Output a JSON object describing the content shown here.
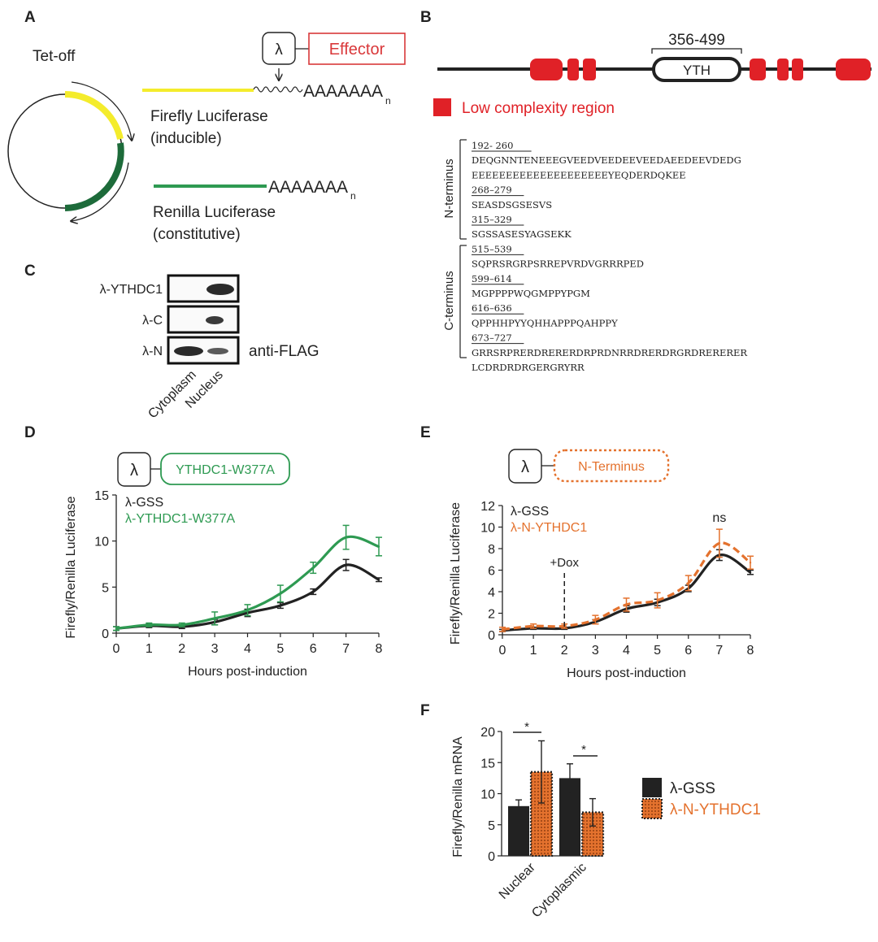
{
  "colors": {
    "black": "#222222",
    "green": "#2e9a52",
    "dark_green": "#1d6b3a",
    "yellow": "#f4ec2c",
    "orange": "#e4722e",
    "red": "#e02127",
    "effector_red": "#d9383a"
  },
  "panelA": {
    "letter": "A",
    "tet_off": "Tet-off",
    "lambda": "λ",
    "effector": "Effector",
    "polyA": "AAAAAAA",
    "polyA_sub": "n",
    "firefly_line1": "Firefly Luciferase",
    "firefly_line2": "(inducible)",
    "renilla_line1": "Renilla Luciferase",
    "renilla_line2": "(constitutive)"
  },
  "panelB": {
    "letter": "B",
    "range": "356-499",
    "domain": "YTH",
    "legend": "Low complexity region",
    "n_label": "N-terminus",
    "c_label": "C-terminus",
    "n_blocks": [
      {
        "range": "192- 260",
        "lines": [
          "DEQGNNTENEEEGVEEDVEEDEEVEEDAEEDEEVDEDG",
          "EEEEEEEEEEEEEEEEEEEEYEQDERDQKEE"
        ]
      },
      {
        "range": "268–279",
        "lines": [
          "SEASDSGSESVS"
        ]
      },
      {
        "range": "315–329",
        "lines": [
          "SGSSASESYAGSEKK"
        ]
      }
    ],
    "c_blocks": [
      {
        "range": "515–539",
        "lines": [
          "SQPRSRGRPSRREPVRDVGRRRPED"
        ]
      },
      {
        "range": "599–614",
        "lines": [
          "MGPPPPWQGMPPYPGM"
        ]
      },
      {
        "range": "616–636",
        "lines": [
          "QPPHHPYYQHHAPPPQAHPPY"
        ]
      },
      {
        "range": "673–727",
        "lines": [
          "GRRSRPRERDRERERDRPRDNRRDRERDRGRDRERERER",
          "LCDRDRDRGERGRYRR"
        ]
      }
    ]
  },
  "panelC": {
    "letter": "C",
    "rows": [
      "λ-YTHDC1",
      "λ-C",
      "λ-N"
    ],
    "antibody": "anti-FLAG",
    "fractions": [
      "Cytoplasm",
      "Nucleus"
    ]
  },
  "panelD": {
    "letter": "D",
    "lambda": "λ",
    "construct": "YTHDC1-W377A"
  },
  "panelE": {
    "letter": "E",
    "lambda": "λ",
    "construct": "N-Terminus",
    "dox": "+Dox",
    "ns": "ns"
  },
  "panelF": {
    "letter": "F",
    "star1": "*",
    "star2": "*"
  },
  "chart_data": [
    {
      "id": "D",
      "type": "line",
      "ylabel": "Firefly/Renilla Luciferase",
      "xlabel": "Hours post-induction",
      "x": [
        0,
        1,
        2,
        3,
        4,
        5,
        6,
        7,
        8
      ],
      "xlim": [
        0,
        8
      ],
      "ylim": [
        0,
        15
      ],
      "yticks": [
        0,
        5,
        10,
        15
      ],
      "series": [
        {
          "name": "λ-GSS",
          "color": "#222222",
          "values": [
            0.5,
            0.8,
            0.7,
            1.2,
            2.2,
            3.0,
            4.5,
            7.4,
            5.8
          ],
          "err": [
            0.2,
            0.2,
            0.2,
            0.3,
            0.4,
            0.3,
            0.3,
            0.6,
            0.2
          ]
        },
        {
          "name": "λ-YTHDC1-W377A",
          "color": "#2e9a52",
          "values": [
            0.5,
            0.9,
            0.9,
            1.6,
            2.5,
            4.3,
            7.1,
            10.4,
            9.4
          ],
          "err": [
            0.2,
            0.2,
            0.2,
            0.7,
            0.6,
            0.9,
            0.6,
            1.3,
            1.0
          ]
        }
      ]
    },
    {
      "id": "E",
      "type": "line",
      "ylabel": "Firefly/Renilla Luciferase",
      "xlabel": "Hours post-induction",
      "x": [
        0,
        1,
        2,
        3,
        4,
        5,
        6,
        7,
        8
      ],
      "xlim": [
        0,
        8
      ],
      "ylim": [
        0,
        12
      ],
      "yticks": [
        0,
        2,
        4,
        6,
        8,
        10,
        12
      ],
      "series": [
        {
          "name": "λ-GSS",
          "color": "#222222",
          "values": [
            0.4,
            0.6,
            0.6,
            1.2,
            2.4,
            3.0,
            4.3,
            7.4,
            5.8
          ],
          "err": [
            0.1,
            0.1,
            0.1,
            0.2,
            0.3,
            0.3,
            0.3,
            0.5,
            0.2
          ]
        },
        {
          "name": "λ-N-YTHDC1",
          "color": "#e4722e",
          "values": [
            0.5,
            0.8,
            0.8,
            1.4,
            2.8,
            3.2,
            4.8,
            8.5,
            6.7
          ],
          "err": [
            0.2,
            0.2,
            0.2,
            0.4,
            0.6,
            0.7,
            0.7,
            1.3,
            0.6
          ]
        }
      ]
    },
    {
      "id": "F",
      "type": "bar",
      "ylabel": "Firefly/Renilla mRNA",
      "categories": [
        "Nuclear",
        "Cytoplasmic"
      ],
      "ylim": [
        0,
        20
      ],
      "yticks": [
        0,
        5,
        10,
        15,
        20
      ],
      "series": [
        {
          "name": "λ-GSS",
          "color": "#222222",
          "values": [
            8.0,
            12.5
          ],
          "err": [
            1.0,
            2.3
          ]
        },
        {
          "name": "λ-N-YTHDC1",
          "color": "#e4722e",
          "values": [
            13.5,
            7.0
          ],
          "err": [
            5.0,
            2.2
          ]
        }
      ]
    }
  ]
}
